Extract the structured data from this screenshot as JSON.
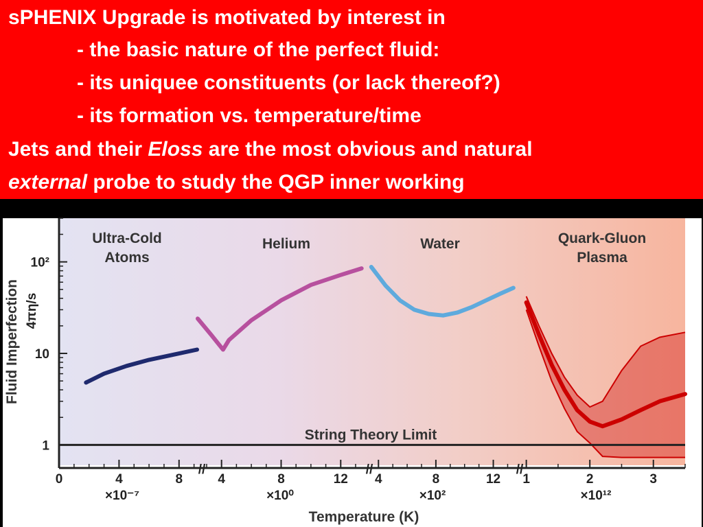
{
  "slide": {
    "line1": "sPHENIX  Upgrade is motivated by interest in",
    "line2": "- the basic nature of the perfect fluid:",
    "line3": "- its uniquee constituents (or lack thereof?)",
    "line4": "- its formation vs. temperature/time",
    "line5a": "Jets and their ",
    "line5b": "Eloss",
    "line5c": " are the most obvious and natural",
    "line6a": "external",
    "line6b": " probe to study the  QGP inner working"
  },
  "chart_data": {
    "type": "line",
    "xlabel": "Temperature (K)",
    "ylabel": "Fluid Imperfection",
    "ylabel_unit": "4πη/s",
    "yscale": "log",
    "ylim": [
      0.6,
      300
    ],
    "y_ticks": [
      "1",
      "10",
      "10²"
    ],
    "axis_break_marker": "//",
    "x_segments": [
      {
        "name": "Ultra-Cold Atoms",
        "ticks": [
          "0",
          "4",
          "8"
        ],
        "multiplier": "×10⁻⁷",
        "range": [
          0,
          9.2
        ]
      },
      {
        "name": "Helium",
        "ticks": [
          "4",
          "8",
          "12"
        ],
        "multiplier": "×10⁰",
        "range": [
          3,
          13.6
        ]
      },
      {
        "name": "Water",
        "ticks": [
          "4",
          "8",
          "12"
        ],
        "multiplier": "×10²",
        "range": [
          3.7,
          13.6
        ]
      },
      {
        "name": "Quark-Gluon Plasma",
        "ticks": [
          "1",
          "2",
          "3"
        ],
        "multiplier": "×10¹²",
        "range": [
          0.95,
          3.5
        ]
      }
    ],
    "series": [
      {
        "name": "Ultra-Cold Atoms",
        "color": "#1f2a6e",
        "segment": 0,
        "x": [
          1.8,
          3,
          4.5,
          6,
          7.5,
          9.2
        ],
        "y": [
          4.8,
          6.0,
          7.3,
          8.5,
          9.6,
          11
        ]
      },
      {
        "name": "Helium",
        "color": "#b7509e",
        "segment": 1,
        "x": [
          2.4,
          3.3,
          4.1,
          4.5,
          6,
          8,
          10,
          12,
          13.4
        ],
        "y": [
          24,
          16,
          11,
          14,
          23,
          38,
          56,
          72,
          85
        ]
      },
      {
        "name": "Water",
        "color": "#5eaadd",
        "segment": 2,
        "x": [
          3.5,
          4.5,
          5.5,
          6.5,
          7.5,
          8.5,
          9.5,
          10.5,
          11.5,
          12.5,
          13.4
        ],
        "y": [
          88,
          55,
          38,
          30,
          27,
          26,
          28,
          32,
          38,
          45,
          52
        ]
      },
      {
        "name": "Quark-Gluon Plasma",
        "color": "#cc0000",
        "segment": 3,
        "x": [
          1.0,
          1.2,
          1.4,
          1.6,
          1.8,
          2.0,
          2.2,
          2.5,
          2.8,
          3.1,
          3.5
        ],
        "y": [
          36,
          16,
          7.5,
          4.0,
          2.4,
          1.8,
          1.6,
          1.9,
          2.4,
          3.0,
          3.6
        ],
        "band_upper": [
          42,
          20,
          10,
          5.5,
          3.5,
          2.6,
          3.0,
          6.5,
          12,
          15,
          17
        ],
        "band_lower": [
          30,
          12,
          5.0,
          2.5,
          1.4,
          1.05,
          0.75,
          0.73,
          0.73,
          0.73,
          0.73
        ]
      },
      {
        "name": "String Theory Limit",
        "color": "#222222",
        "constant_y": 1
      }
    ]
  }
}
